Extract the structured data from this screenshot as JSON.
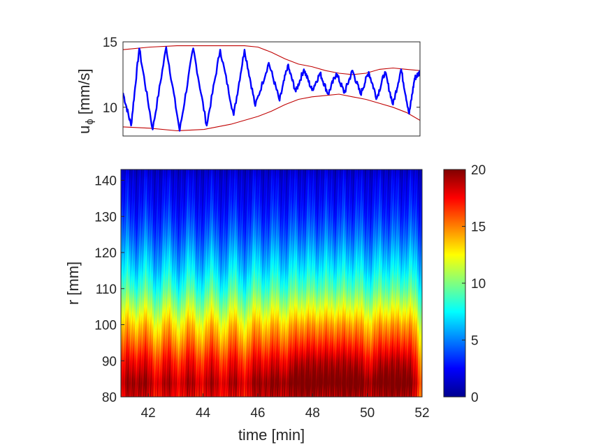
{
  "chart_data": [
    {
      "type": "line",
      "ylabel": "u",
      "ylabel_subscript": "ϕ",
      "ylabel_unit": "[mm/s]",
      "xlim": [
        41,
        52
      ],
      "ylim": [
        7.8,
        15
      ],
      "yticks": [
        10,
        15
      ],
      "series": [
        {
          "role": "signal",
          "color": "#0000ff",
          "x": [
            41.0,
            41.3,
            41.6,
            42.1,
            42.6,
            43.1,
            43.6,
            44.1,
            44.6,
            45.1,
            45.5,
            45.9,
            46.4,
            46.8,
            47.1,
            47.4,
            47.7,
            48.0,
            48.3,
            48.6,
            48.9,
            49.2,
            49.5,
            49.8,
            50.1,
            50.4,
            50.7,
            51.0,
            51.3,
            51.6,
            51.8,
            52.0
          ],
          "y": [
            11.1,
            8.6,
            14.5,
            8.3,
            14.6,
            8.2,
            14.5,
            8.6,
            14.4,
            9.4,
            14.4,
            10.1,
            13.4,
            10.5,
            13.2,
            11.2,
            12.9,
            11.3,
            12.6,
            11.0,
            12.6,
            11.1,
            12.8,
            11.0,
            12.7,
            10.7,
            12.7,
            10.2,
            12.9,
            9.5,
            12.2,
            12.7
          ]
        },
        {
          "role": "upper-envelope",
          "color": "#c00000",
          "x": [
            41.0,
            42.0,
            43.0,
            44.0,
            45.0,
            45.5,
            46.0,
            46.5,
            47.0,
            47.5,
            48.0,
            48.5,
            49.0,
            49.5,
            50.0,
            50.5,
            51.0,
            51.5,
            52.0
          ],
          "y": [
            14.4,
            14.6,
            14.7,
            14.7,
            14.7,
            14.7,
            14.6,
            14.2,
            13.7,
            13.3,
            13.1,
            12.8,
            12.6,
            12.5,
            12.6,
            12.9,
            13.0,
            12.9,
            12.8
          ]
        },
        {
          "role": "lower-envelope",
          "color": "#c00000",
          "x": [
            41.0,
            42.0,
            43.0,
            44.0,
            45.0,
            46.0,
            46.5,
            47.0,
            47.5,
            48.0,
            48.5,
            49.0,
            49.5,
            50.0,
            50.5,
            51.0,
            51.5,
            52.0
          ],
          "y": [
            8.5,
            8.4,
            8.2,
            8.3,
            8.7,
            9.3,
            9.7,
            10.2,
            10.6,
            10.8,
            10.9,
            11.0,
            10.8,
            10.6,
            10.3,
            10.0,
            9.6,
            9.0
          ]
        }
      ]
    },
    {
      "type": "heatmap",
      "xlabel": "time [min]",
      "ylabel": "r [mm]",
      "xlim": [
        41,
        52
      ],
      "ylim": [
        80,
        143
      ],
      "xticks": [
        42,
        44,
        46,
        48,
        50,
        52
      ],
      "yticks": [
        80,
        90,
        100,
        110,
        120,
        130,
        140
      ],
      "colorbar": {
        "colormap": "jet",
        "range": [
          0,
          20
        ],
        "ticks": [
          0,
          5,
          10,
          15,
          20
        ]
      },
      "radial_profile": {
        "r": [
          80,
          85,
          90,
          95,
          100,
          105,
          110,
          115,
          120,
          125,
          130,
          135,
          140,
          143
        ],
        "value": [
          17,
          16.5,
          15.5,
          14,
          12.5,
          10.5,
          8.5,
          7,
          5.8,
          4.6,
          3.6,
          2.8,
          2.2,
          1.5
        ]
      },
      "pulse_times": [
        41.2,
        41.9,
        42.7,
        43.5,
        44.3,
        45.1,
        45.9,
        46.6,
        47.3,
        47.9,
        48.5,
        49.1,
        49.7,
        50.4,
        51.0,
        51.6
      ]
    }
  ]
}
